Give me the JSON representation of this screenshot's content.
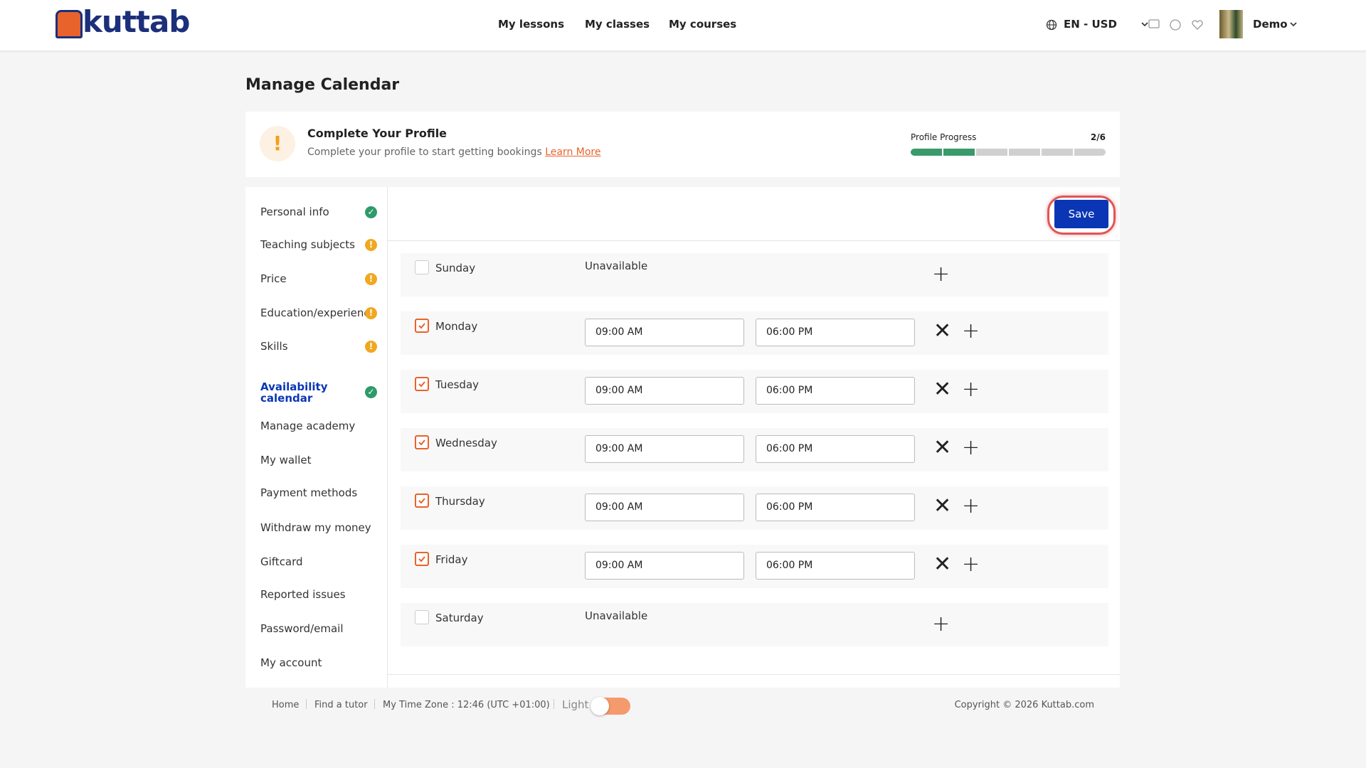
{
  "header": {
    "logo": "kuttab",
    "nav": [
      "My lessons",
      "My classes",
      "My courses"
    ],
    "locale": "EN - USD",
    "user": "Demo"
  },
  "page_title": "Manage Calendar",
  "profile_banner": {
    "title": "Complete Your Profile",
    "text": "Complete your profile to start getting bookings",
    "link": "Learn More",
    "progress_title": "Profile Progress",
    "progress": "2/6"
  },
  "sidebar": [
    {
      "label": "Personal info",
      "status": "complete"
    },
    {
      "label": "Teaching subjects",
      "status": "incomplete"
    },
    {
      "label": "Price",
      "status": "incomplete"
    },
    {
      "label": "Education/experience",
      "status": "incomplete"
    },
    {
      "label": "Skills",
      "status": "incomplete"
    },
    {
      "label": "Availability calendar",
      "status": "complete",
      "active": true
    },
    {
      "label": "Manage academy"
    },
    {
      "label": "My wallet"
    },
    {
      "label": "Payment methods"
    },
    {
      "label": "Withdraw my money"
    },
    {
      "label": "Giftcard"
    },
    {
      "label": "Reported issues"
    },
    {
      "label": "Password/email"
    },
    {
      "label": "My account"
    }
  ],
  "save_button": "Save",
  "days": [
    {
      "day": "Sunday",
      "checked": false,
      "status": "Unavailable"
    },
    {
      "day": "Monday",
      "checked": true,
      "slots": [
        {
          "from": "09:00 AM",
          "to": "06:00 PM"
        }
      ]
    },
    {
      "day": "Tuesday",
      "checked": true,
      "slots": [
        {
          "from": "09:00 AM",
          "to": "06:00 PM"
        }
      ]
    },
    {
      "day": "Wednesday",
      "checked": true,
      "slots": [
        {
          "from": "09:00 AM",
          "to": "06:00 PM"
        }
      ]
    },
    {
      "day": "Thursday",
      "checked": true,
      "slots": [
        {
          "from": "09:00 AM",
          "to": "06:00 PM"
        }
      ]
    },
    {
      "day": "Friday",
      "checked": true,
      "slots": [
        {
          "from": "09:00 AM",
          "to": "06:00 PM"
        }
      ]
    },
    {
      "day": "Saturday",
      "checked": false,
      "status": "Unavailable"
    }
  ],
  "footer": {
    "links": [
      "Home",
      "Find a tutor",
      "My Time Zone : 12:46 (UTC +01:00)"
    ],
    "theme": "Light",
    "copyright": "Copyright © 2026 Kuttab.com"
  }
}
